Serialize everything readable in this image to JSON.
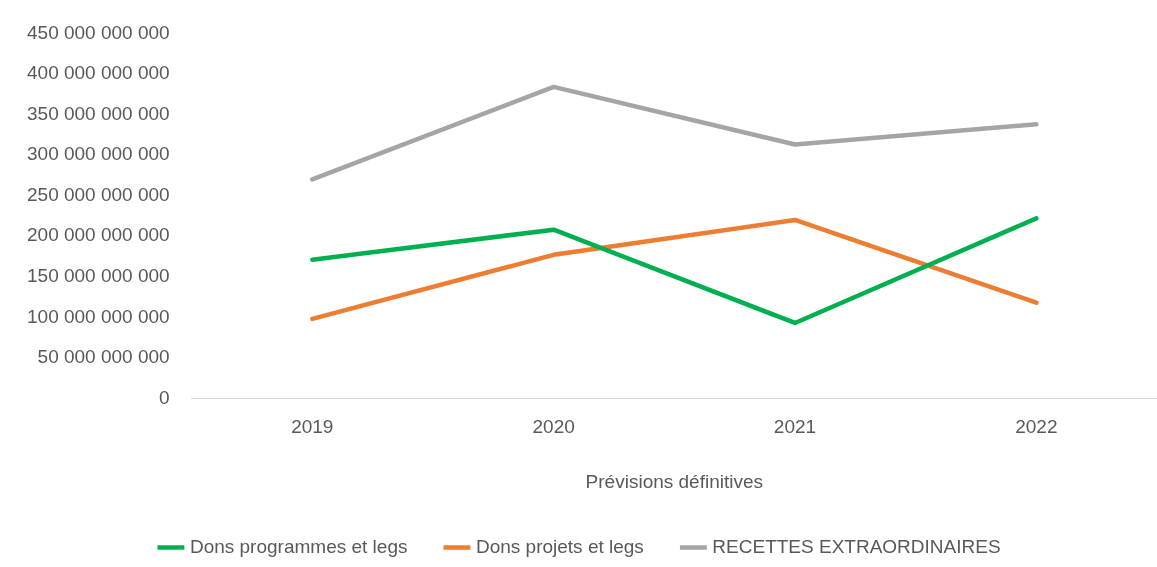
{
  "chart_data": {
    "type": "line",
    "xlabel": "Prévisions définitives",
    "categories": [
      "2019",
      "2020",
      "2021",
      "2022"
    ],
    "series": [
      {
        "name": "Dons programmes et legs",
        "color": "#00b050",
        "values": [
          171000000000,
          208000000000,
          93000000000,
          222000000000
        ]
      },
      {
        "name": "Dons projets et legs",
        "color": "#ed7d31",
        "values": [
          98000000000,
          177000000000,
          220000000000,
          118000000000
        ]
      },
      {
        "name": "RECETTES EXTRAORDINAIRES",
        "color": "#a5a5a5",
        "values": [
          270000000000,
          384000000000,
          313000000000,
          338000000000
        ]
      }
    ],
    "ylim": [
      0,
      450000000000
    ],
    "yticks": [
      {
        "value": 0,
        "label": "0"
      },
      {
        "value": 50000000000,
        "label": "50 000 000 000"
      },
      {
        "value": 100000000000,
        "label": "100 000 000 000"
      },
      {
        "value": 150000000000,
        "label": "150 000 000 000"
      },
      {
        "value": 200000000000,
        "label": "200 000 000 000"
      },
      {
        "value": 250000000000,
        "label": "250 000 000 000"
      },
      {
        "value": 300000000000,
        "label": "300 000 000 000"
      },
      {
        "value": 350000000000,
        "label": "350 000 000 000"
      },
      {
        "value": 400000000000,
        "label": "400 000 000 000"
      },
      {
        "value": 450000000000,
        "label": "450 000 000 000"
      }
    ],
    "grid": false,
    "legend": "bottom",
    "marker": "none",
    "line_style": "solid"
  }
}
